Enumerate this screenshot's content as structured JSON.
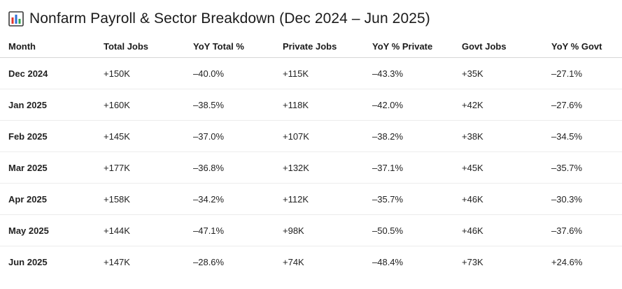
{
  "chart_data": {
    "type": "table",
    "title": "Nonfarm Payroll & Sector Breakdown (Dec 2024 – Jun 2025)",
    "title_icon": "bar-chart-icon",
    "columns": [
      "Month",
      "Total Jobs",
      "YoY Total %",
      "Private Jobs",
      "YoY % Private",
      "Govt Jobs",
      "YoY % Govt"
    ],
    "rows": [
      {
        "month": "Dec 2024",
        "total": "+150K",
        "yoy_total": "–40.0%",
        "private": "+115K",
        "yoy_private": "–43.3%",
        "govt": "+35K",
        "yoy_govt": "–27.1%"
      },
      {
        "month": "Jan 2025",
        "total": "+160K",
        "yoy_total": "–38.5%",
        "private": "+118K",
        "yoy_private": "–42.0%",
        "govt": "+42K",
        "yoy_govt": "–27.6%"
      },
      {
        "month": "Feb 2025",
        "total": "+145K",
        "yoy_total": "–37.0%",
        "private": "+107K",
        "yoy_private": "–38.2%",
        "govt": "+38K",
        "yoy_govt": "–34.5%"
      },
      {
        "month": "Mar 2025",
        "total": "+177K",
        "yoy_total": "–36.8%",
        "private": "+132K",
        "yoy_private": "–37.1%",
        "govt": "+45K",
        "yoy_govt": "–35.7%"
      },
      {
        "month": "Apr 2025",
        "total": "+158K",
        "yoy_total": "–34.2%",
        "private": "+112K",
        "yoy_private": "–35.7%",
        "govt": "+46K",
        "yoy_govt": "–30.3%"
      },
      {
        "month": "May 2025",
        "total": "+144K",
        "yoy_total": "–47.1%",
        "private": "+98K",
        "yoy_private": "–50.5%",
        "govt": "+46K",
        "yoy_govt": "–37.6%"
      },
      {
        "month": "Jun 2025",
        "total": "+147K",
        "yoy_total": "–28.6%",
        "private": "+74K",
        "yoy_private": "–48.4%",
        "govt": "+73K",
        "yoy_govt": "+24.6%"
      }
    ]
  },
  "colors": {
    "icon_bar_red": "#e0352b",
    "icon_bar_blue": "#2f6fd6",
    "icon_bar_green": "#2fa84f",
    "icon_frame": "#3a3a3a"
  }
}
